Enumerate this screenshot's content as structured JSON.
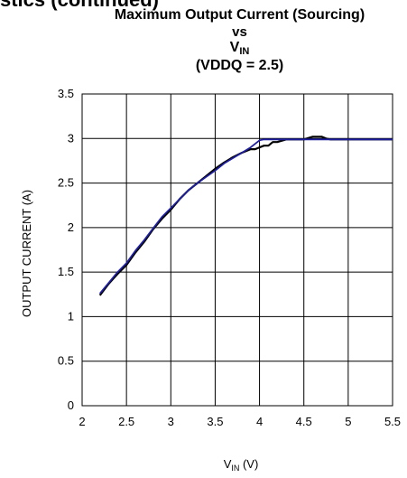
{
  "header": {
    "clipped_text": "stics (continued)"
  },
  "chart_data": {
    "type": "line",
    "title": {
      "line1": "Maximum Output Current (Sourcing)",
      "line2": "vs",
      "line3_main": "V",
      "line3_sub": "IN",
      "line4": "(VDDQ = 2.5)"
    },
    "xlabel": {
      "main": "V",
      "sub": "IN",
      "suffix": " (V)"
    },
    "ylabel": "OUTPUT CURRENT (A)",
    "xlim": [
      2,
      5.5
    ],
    "ylim": [
      0,
      3.5
    ],
    "xticks": [
      2,
      2.5,
      3,
      3.5,
      4,
      4.5,
      5,
      5.5
    ],
    "yticks": [
      0,
      0.5,
      1,
      1.5,
      2,
      2.5,
      3,
      3.5
    ],
    "xtick_labels": [
      "2",
      "2.5",
      "3",
      "3.5",
      "4",
      "4.5",
      "5",
      "5.5"
    ],
    "ytick_labels": [
      "0",
      "0.5",
      "1",
      "1.5",
      "2",
      "2.5",
      "3",
      "3.5"
    ],
    "grid": true,
    "series": [
      {
        "color": "#000000",
        "x": [
          2.2,
          2.3,
          2.4,
          2.5,
          2.6,
          2.7,
          2.8,
          2.9,
          3.0,
          3.1,
          3.2,
          3.3,
          3.4,
          3.5,
          3.6,
          3.7,
          3.8,
          3.9,
          3.95,
          4.0,
          4.05,
          4.1,
          4.15,
          4.2,
          4.3,
          4.4,
          4.5,
          4.6,
          4.7,
          4.75,
          4.8,
          5.0,
          5.2,
          5.5
        ],
        "y": [
          1.24,
          1.37,
          1.48,
          1.58,
          1.72,
          1.84,
          1.98,
          2.1,
          2.2,
          2.32,
          2.42,
          2.5,
          2.58,
          2.66,
          2.73,
          2.79,
          2.84,
          2.88,
          2.88,
          2.9,
          2.92,
          2.92,
          2.96,
          2.96,
          2.99,
          2.99,
          2.99,
          3.02,
          3.02,
          3.0,
          2.99,
          2.99,
          2.99,
          2.99
        ]
      },
      {
        "color": "#1f1f9e",
        "x": [
          2.2,
          2.3,
          2.4,
          2.5,
          2.6,
          2.7,
          2.8,
          2.9,
          3.0,
          3.1,
          3.2,
          3.3,
          3.4,
          3.5,
          3.6,
          3.7,
          3.8,
          3.9,
          4.0,
          4.05,
          4.1,
          4.2,
          4.5,
          5.0,
          5.5
        ],
        "y": [
          1.26,
          1.38,
          1.5,
          1.6,
          1.74,
          1.86,
          1.99,
          2.12,
          2.22,
          2.32,
          2.42,
          2.5,
          2.57,
          2.64,
          2.72,
          2.78,
          2.84,
          2.9,
          2.98,
          2.99,
          2.99,
          2.99,
          2.99,
          2.99,
          2.99
        ]
      }
    ]
  }
}
